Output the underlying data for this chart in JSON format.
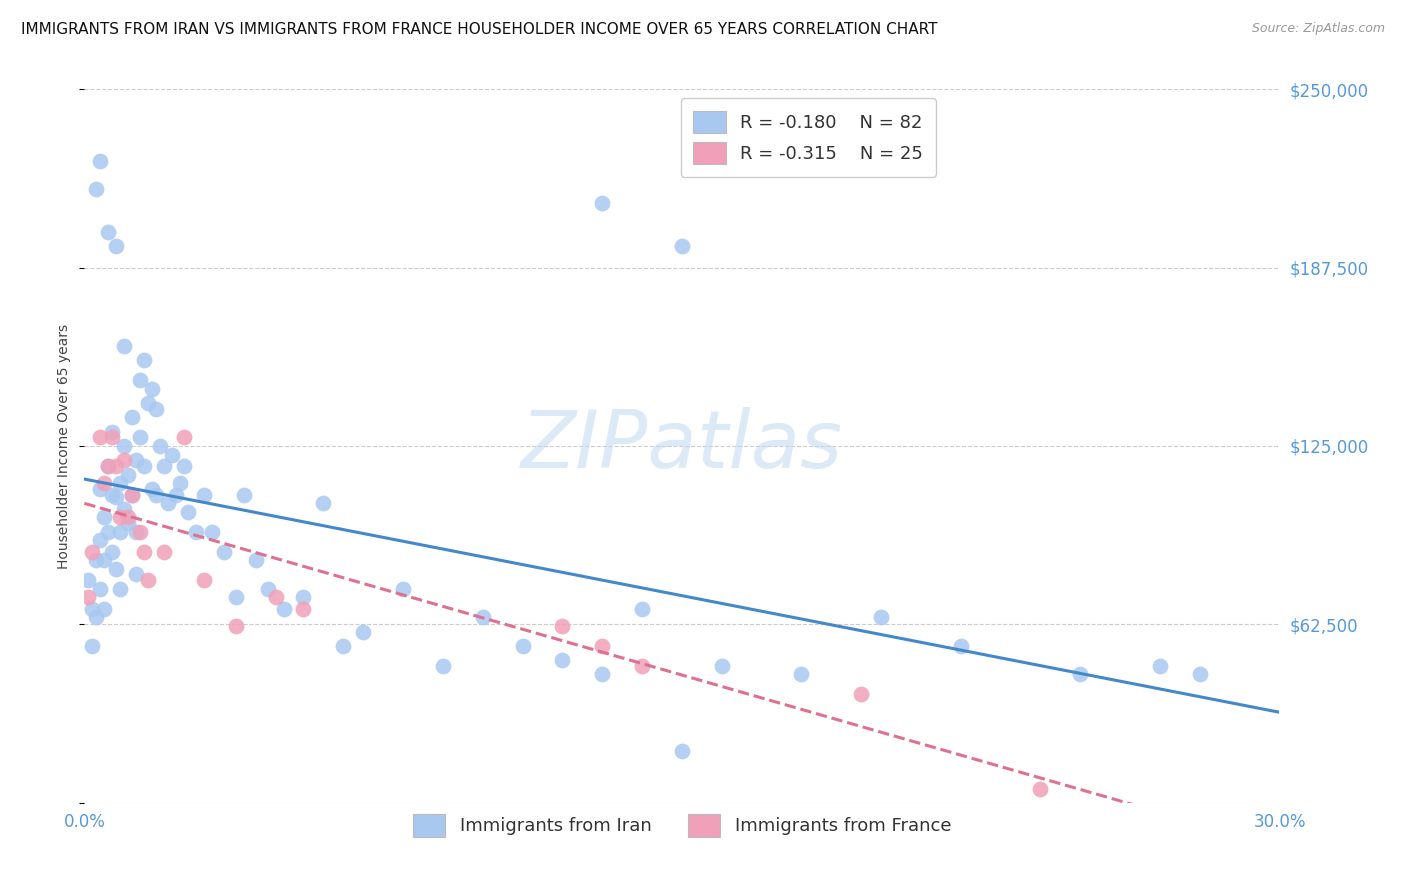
{
  "title": "IMMIGRANTS FROM IRAN VS IMMIGRANTS FROM FRANCE HOUSEHOLDER INCOME OVER 65 YEARS CORRELATION CHART",
  "source": "Source: ZipAtlas.com",
  "ylabel": "Householder Income Over 65 years",
  "xlim": [
    0.0,
    0.3
  ],
  "ylim": [
    0,
    250000
  ],
  "iran_color": "#a8c8f0",
  "france_color": "#f0a0b8",
  "iran_line_color": "#4488cc",
  "france_line_color": "#e07090",
  "iran_R": -0.18,
  "iran_N": 82,
  "france_R": -0.315,
  "france_N": 25,
  "legend_label_iran": "Immigrants from Iran",
  "legend_label_france": "Immigrants from France",
  "watermark": "ZIPatlas",
  "bg_color": "#ffffff",
  "grid_color": "#cccccc",
  "tick_color": "#5599dd",
  "title_fontsize": 11,
  "axis_label_fontsize": 10,
  "tick_fontsize": 12,
  "iran_x": [
    0.001,
    0.002,
    0.002,
    0.003,
    0.003,
    0.004,
    0.004,
    0.004,
    0.005,
    0.005,
    0.005,
    0.006,
    0.006,
    0.007,
    0.007,
    0.007,
    0.008,
    0.008,
    0.009,
    0.009,
    0.009,
    0.01,
    0.01,
    0.011,
    0.011,
    0.012,
    0.012,
    0.013,
    0.013,
    0.013,
    0.014,
    0.014,
    0.015,
    0.015,
    0.016,
    0.017,
    0.017,
    0.018,
    0.018,
    0.019,
    0.02,
    0.021,
    0.022,
    0.023,
    0.024,
    0.025,
    0.026,
    0.028,
    0.03,
    0.032,
    0.035,
    0.038,
    0.04,
    0.043,
    0.046,
    0.05,
    0.055,
    0.06,
    0.065,
    0.07,
    0.08,
    0.09,
    0.1,
    0.11,
    0.12,
    0.13,
    0.14,
    0.15,
    0.16,
    0.18,
    0.2,
    0.22,
    0.25,
    0.27,
    0.003,
    0.004,
    0.006,
    0.008,
    0.01,
    0.13,
    0.15,
    0.28
  ],
  "iran_y": [
    78000,
    68000,
    55000,
    85000,
    65000,
    92000,
    110000,
    75000,
    100000,
    85000,
    68000,
    118000,
    95000,
    108000,
    130000,
    88000,
    107000,
    82000,
    112000,
    95000,
    75000,
    125000,
    103000,
    115000,
    98000,
    135000,
    108000,
    120000,
    95000,
    80000,
    148000,
    128000,
    155000,
    118000,
    140000,
    145000,
    110000,
    138000,
    108000,
    125000,
    118000,
    105000,
    122000,
    108000,
    112000,
    118000,
    102000,
    95000,
    108000,
    95000,
    88000,
    72000,
    108000,
    85000,
    75000,
    68000,
    72000,
    105000,
    55000,
    60000,
    75000,
    48000,
    65000,
    55000,
    50000,
    45000,
    68000,
    18000,
    48000,
    45000,
    65000,
    55000,
    45000,
    48000,
    215000,
    225000,
    200000,
    195000,
    160000,
    210000,
    195000,
    45000
  ],
  "france_x": [
    0.001,
    0.002,
    0.004,
    0.005,
    0.006,
    0.007,
    0.008,
    0.009,
    0.01,
    0.011,
    0.012,
    0.014,
    0.015,
    0.016,
    0.02,
    0.025,
    0.03,
    0.038,
    0.048,
    0.055,
    0.12,
    0.13,
    0.14,
    0.195,
    0.24
  ],
  "france_y": [
    72000,
    88000,
    128000,
    112000,
    118000,
    128000,
    118000,
    100000,
    120000,
    100000,
    108000,
    95000,
    88000,
    78000,
    88000,
    128000,
    78000,
    62000,
    72000,
    68000,
    62000,
    55000,
    48000,
    38000,
    5000
  ]
}
